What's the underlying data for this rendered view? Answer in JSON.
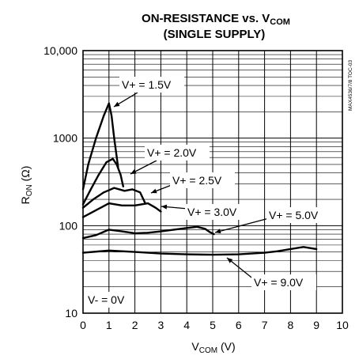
{
  "chart_data": {
    "type": "line",
    "title_line1": "ON-RESISTANCE vs. V",
    "title_line1_sub": "COM",
    "title_line2": "(SINGLE SUPPLY)",
    "xlabel_main": "V",
    "xlabel_sub": "COM",
    "xlabel_unit": " (V)",
    "ylabel_main": "R",
    "ylabel_sub": "ON",
    "ylabel_unit": " (Ω)",
    "x_axis": {
      "min": 0,
      "max": 10,
      "ticks": [
        "0",
        "1",
        "2",
        "3",
        "4",
        "5",
        "6",
        "7",
        "8",
        "9",
        "10"
      ]
    },
    "y_axis": {
      "scale": "log",
      "min": 10,
      "max": 10000,
      "ticks": [
        "10",
        "100",
        "1000",
        "10,000"
      ]
    },
    "grid": true,
    "side_note": "MAX4536/7/8 TOC-03",
    "annotation": "V- = 0V",
    "series": [
      {
        "name": "V+ = 1.5V",
        "label": "V+ = 1.5V",
        "x": [
          0,
          0.2,
          0.5,
          0.8,
          1.0,
          1.1,
          1.2,
          1.35
        ],
        "y": [
          260,
          500,
          1000,
          1800,
          2500,
          1800,
          1000,
          470
        ]
      },
      {
        "name": "V+ = 2.0V",
        "label": "V+ = 2.0V",
        "x": [
          0,
          0.3,
          0.6,
          0.9,
          1.15,
          1.3,
          1.45,
          1.55
        ],
        "y": [
          175,
          260,
          380,
          530,
          580,
          500,
          380,
          280
        ]
      },
      {
        "name": "V+ = 2.5V",
        "label": "V+ = 2.5V",
        "x": [
          0,
          0.4,
          0.8,
          1.2,
          1.6,
          1.9,
          2.2,
          2.4
        ],
        "y": [
          160,
          200,
          240,
          270,
          250,
          260,
          240,
          180
        ]
      },
      {
        "name": "V+ = 3.0V",
        "label": "V+ = 3.0V",
        "x": [
          0,
          0.5,
          1.0,
          1.5,
          2.0,
          2.5,
          2.8,
          3.0
        ],
        "y": [
          125,
          150,
          180,
          170,
          170,
          180,
          160,
          145
        ]
      },
      {
        "name": "V+ = 5.0V",
        "label": "V+ = 5.0V",
        "x": [
          0,
          0.5,
          1.0,
          1.5,
          2.0,
          2.5,
          3.0,
          3.5,
          4.0,
          4.4,
          4.7,
          4.9,
          5.05
        ],
        "y": [
          72,
          78,
          90,
          86,
          82,
          83,
          86,
          90,
          94,
          97,
          92,
          84,
          80
        ]
      },
      {
        "name": "V+ = 9.0V",
        "label": "V+ = 9.0V",
        "x": [
          0,
          1,
          2,
          3,
          4,
          5,
          6,
          7,
          7.5,
          8,
          8.5,
          9
        ],
        "y": [
          49,
          52,
          50,
          48,
          47,
          46.5,
          47,
          49,
          51,
          54,
          57,
          54
        ]
      }
    ]
  }
}
